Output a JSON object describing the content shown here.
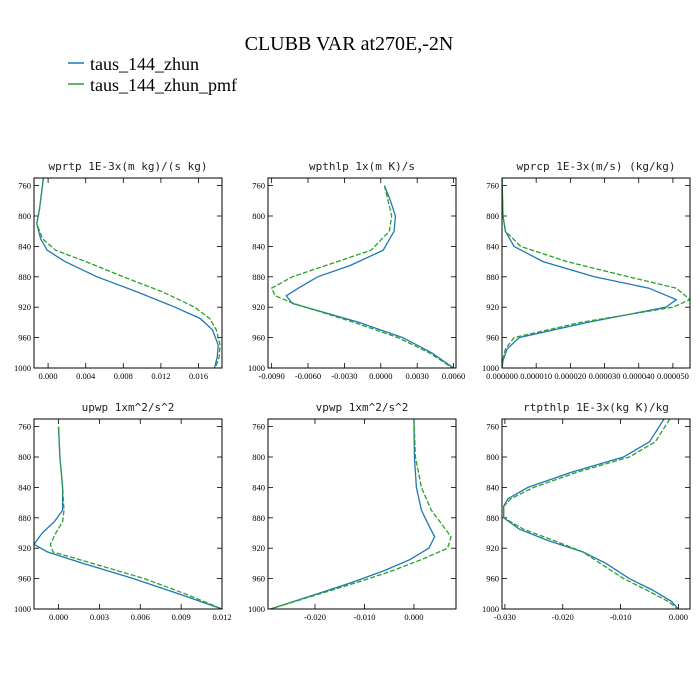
{
  "figure": {
    "title": "CLUBB VAR at270E,-2N",
    "legend": [
      {
        "name": "taus_144_zhun",
        "color": "#1f77b4",
        "dash": "solid"
      },
      {
        "name": "taus_144_zhun_pmf",
        "color": "#2ca02c",
        "dash": "dashed"
      }
    ]
  },
  "chart_data": [
    {
      "type": "line",
      "title": "wprtp  1E-3x(m kg)/(s kg)",
      "ylabel": "",
      "xlabel": "",
      "ylim": [
        1000,
        750
      ],
      "xlim": [
        -0.0015,
        0.0185
      ],
      "yticks": [
        760,
        800,
        840,
        880,
        920,
        960,
        1000
      ],
      "xticks": [
        0.0,
        0.004,
        0.008,
        0.012,
        0.016
      ],
      "xtick_labels": [
        "0.000",
        "0.004",
        "0.008",
        "0.012",
        "0.016"
      ],
      "y": [
        750,
        790,
        810,
        830,
        845,
        860,
        880,
        900,
        920,
        935,
        950,
        970,
        985,
        1000
      ],
      "series": [
        {
          "name": "taus_144_zhun",
          "values": [
            -0.0005,
            -0.0009,
            -0.0012,
            -0.0008,
            -0.0001,
            0.0018,
            0.0052,
            0.0095,
            0.0135,
            0.0162,
            0.0175,
            0.0181,
            0.018,
            0.0177
          ]
        },
        {
          "name": "taus_144_zhun_pmf",
          "values": [
            -0.0005,
            -0.0009,
            -0.0012,
            -0.0006,
            0.0008,
            0.004,
            0.008,
            0.0122,
            0.0156,
            0.0172,
            0.0179,
            0.0183,
            0.0182,
            0.0178
          ]
        }
      ]
    },
    {
      "type": "line",
      "title": "wpthlp  1x(m K)/s",
      "ylabel": "",
      "xlabel": "",
      "ylim": [
        1000,
        750
      ],
      "xlim": [
        -0.0093,
        0.0062
      ],
      "yticks": [
        760,
        800,
        840,
        880,
        920,
        960,
        1000
      ],
      "xticks": [
        -0.009,
        -0.006,
        -0.003,
        0.0,
        0.003,
        0.006
      ],
      "xtick_labels": [
        "-0.0090",
        "-0.0060",
        "-0.0030",
        "0.0000",
        "0.0030",
        "0.0060"
      ],
      "y": [
        760,
        780,
        800,
        820,
        845,
        865,
        880,
        895,
        905,
        915,
        940,
        960,
        980,
        1000
      ],
      "series": [
        {
          "name": "taus_144_zhun",
          "values": [
            0.0003,
            0.0008,
            0.0012,
            0.0011,
            0.0002,
            -0.0025,
            -0.0052,
            -0.0068,
            -0.0078,
            -0.0073,
            -0.0018,
            0.0018,
            0.0042,
            0.006
          ]
        },
        {
          "name": "taus_144_zhun_pmf",
          "values": [
            0.0003,
            0.0006,
            0.0009,
            0.0007,
            -0.0008,
            -0.0045,
            -0.0073,
            -0.009,
            -0.0087,
            -0.0072,
            -0.0022,
            0.0014,
            0.004,
            0.0059
          ]
        }
      ]
    },
    {
      "type": "line",
      "title": "wprcp  1E-3x(m/s) (kg/kg)",
      "ylabel": "",
      "xlabel": "",
      "ylim": [
        1000,
        750
      ],
      "xlim": [
        0.0,
        5.5e-05
      ],
      "yticks": [
        760,
        800,
        840,
        880,
        920,
        960,
        1000
      ],
      "xticks": [
        0.0,
        1e-05,
        2e-05,
        3e-05,
        4e-05,
        5e-05
      ],
      "xtick_labels": [
        "0.000000",
        "0.000010",
        "0.000020",
        "0.000030",
        "0.000040",
        "0.000050"
      ],
      "y": [
        750,
        800,
        820,
        840,
        860,
        880,
        895,
        910,
        920,
        940,
        960,
        975,
        990,
        1000
      ],
      "series": [
        {
          "name": "taus_144_zhun",
          "values": [
            0.0,
            3e-07,
            1e-06,
            3.5e-06,
            1.2e-05,
            2.7e-05,
            4.3e-05,
            5.1e-05,
            4.8e-05,
            2.5e-05,
            5e-06,
            1.5e-06,
            3e-07,
            0.0
          ],
          "note": ""
        },
        {
          "name": "taus_144_zhun_pmf",
          "values": [
            0.0,
            3e-07,
            1e-06,
            5.5e-06,
            1.9e-05,
            3.7e-05,
            5.1e-05,
            5.5e-05,
            5e-05,
            2.3e-05,
            3.5e-06,
            1e-06,
            2e-07,
            0.0
          ]
        }
      ]
    },
    {
      "type": "line",
      "title": "upwp  1xm^2/s^2",
      "ylabel": "",
      "xlabel": "",
      "ylim": [
        1000,
        750
      ],
      "xlim": [
        -0.0018,
        0.012
      ],
      "yticks": [
        760,
        800,
        840,
        880,
        920,
        960,
        1000
      ],
      "xticks": [
        0.0,
        0.003,
        0.006,
        0.009,
        0.012
      ],
      "xtick_labels": [
        "0.000",
        "0.003",
        "0.006",
        "0.009",
        "0.012"
      ],
      "y": [
        760,
        800,
        840,
        870,
        885,
        900,
        915,
        925,
        940,
        960,
        980,
        1000
      ],
      "series": [
        {
          "name": "taus_144_zhun",
          "values": [
            0.0,
            0.0001,
            0.0003,
            0.0003,
            -0.0003,
            -0.0012,
            -0.0018,
            -0.0008,
            0.0018,
            0.0055,
            0.0088,
            0.012
          ]
        },
        {
          "name": "taus_144_zhun_pmf",
          "values": [
            0.0,
            0.0001,
            0.0003,
            0.0004,
            0.0003,
            -0.0002,
            -0.0006,
            -0.0004,
            0.0025,
            0.0063,
            0.0093,
            0.012
          ]
        }
      ]
    },
    {
      "type": "line",
      "title": "vpwp  1xm^2/s^2",
      "ylabel": "",
      "xlabel": "",
      "ylim": [
        1000,
        750
      ],
      "xlim": [
        -0.0295,
        0.0085
      ],
      "yticks": [
        760,
        800,
        840,
        880,
        920,
        960,
        1000
      ],
      "xticks": [
        -0.02,
        -0.01,
        0.0
      ],
      "xtick_labels": [
        "-0.020",
        "-0.010",
        "0.000"
      ],
      "y": [
        750,
        800,
        840,
        870,
        890,
        905,
        920,
        935,
        950,
        965,
        980,
        1000
      ],
      "series": [
        {
          "name": "taus_144_zhun",
          "values": [
            0.0,
            0.0001,
            0.0005,
            0.0015,
            0.003,
            0.0042,
            0.003,
            -0.0008,
            -0.0062,
            -0.0125,
            -0.0195,
            -0.029
          ]
        },
        {
          "name": "taus_144_zhun_pmf",
          "values": [
            0.0,
            0.0003,
            0.0015,
            0.0035,
            0.0058,
            0.0075,
            0.0068,
            0.0015,
            -0.0045,
            -0.0115,
            -0.019,
            -0.029
          ]
        }
      ]
    },
    {
      "type": "line",
      "title": "rtpthlp  1E-3x(kg K)/kg",
      "ylabel": "",
      "xlabel": "",
      "ylim": [
        1000,
        750
      ],
      "xlim": [
        -0.0305,
        0.002
      ],
      "yticks": [
        760,
        800,
        840,
        880,
        920,
        960,
        1000
      ],
      "xticks": [
        -0.03,
        -0.02,
        -0.01,
        0.0
      ],
      "xtick_labels": [
        "-0.030",
        "-0.020",
        "-0.010",
        "0.000"
      ],
      "y": [
        750,
        780,
        800,
        820,
        840,
        855,
        865,
        880,
        895,
        910,
        925,
        940,
        960,
        975,
        990,
        1000
      ],
      "series": [
        {
          "name": "taus_144_zhun",
          "values": [
            -0.0025,
            -0.005,
            -0.0095,
            -0.0185,
            -0.026,
            -0.0295,
            -0.0302,
            -0.0302,
            -0.0275,
            -0.0225,
            -0.0165,
            -0.0125,
            -0.0085,
            -0.0045,
            -0.0012,
            0.0
          ]
        },
        {
          "name": "taus_144_zhun_pmf",
          "values": [
            -0.0015,
            -0.004,
            -0.0085,
            -0.0175,
            -0.025,
            -0.029,
            -0.0302,
            -0.0302,
            -0.0268,
            -0.0215,
            -0.0165,
            -0.0135,
            -0.0095,
            -0.0055,
            -0.0018,
            0.0
          ]
        }
      ]
    }
  ]
}
